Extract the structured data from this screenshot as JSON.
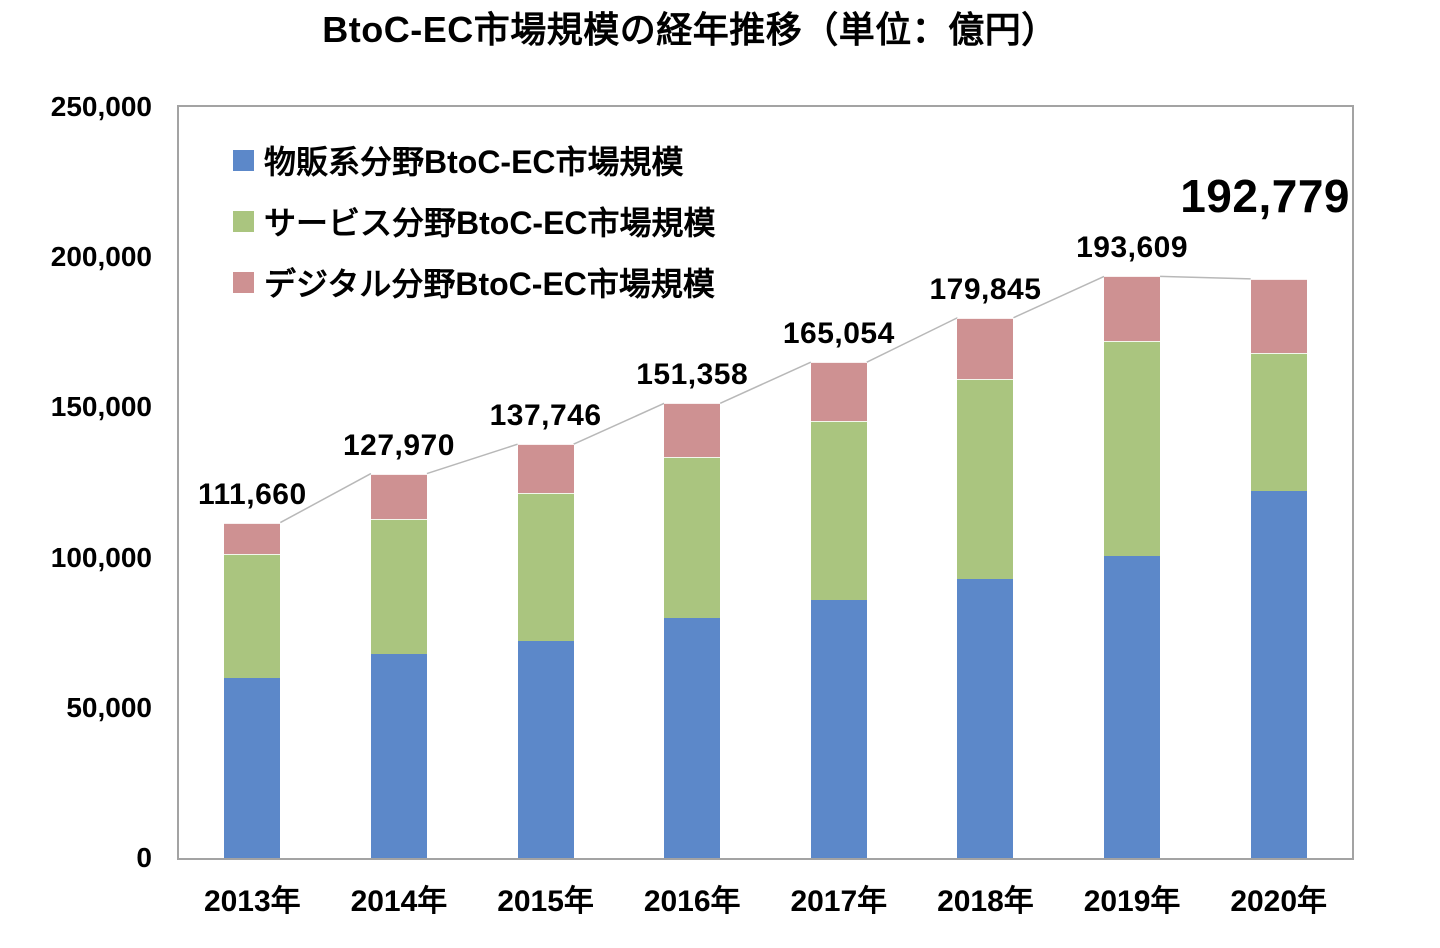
{
  "title": "BtoC-EC市場規模の経年推移（単位：億円）",
  "chart_data": {
    "type": "bar",
    "stacked": true,
    "unit": "億円",
    "title": "BtoC-EC市場規模の経年推移（単位：億円）",
    "categories": [
      "2013年",
      "2014年",
      "2015年",
      "2016年",
      "2017年",
      "2018年",
      "2019年",
      "2020年"
    ],
    "series": [
      {
        "name": "物販系分野BtoC-EC市場規模",
        "color": "#5c88c9",
        "values": [
          59931,
          68042,
          72398,
          80043,
          86008,
          92992,
          100515,
          122333
        ]
      },
      {
        "name": "サービス分野BtoC-EC市場規模",
        "color": "#aac57f",
        "values": [
          41310,
          44816,
          49014,
          53532,
          59568,
          66471,
          71672,
          45832
        ]
      },
      {
        "name": "デジタル分野BtoC-EC市場規模",
        "color": "#ce9192",
        "values": [
          10419,
          15111,
          16334,
          17782,
          19478,
          20382,
          21422,
          24614
        ]
      }
    ],
    "totals": [
      111660,
      127970,
      137746,
      151358,
      165054,
      179845,
      193609,
      192779
    ],
    "total_labels": [
      "111,660",
      "127,970",
      "137,746",
      "151,358",
      "165,054",
      "179,845",
      "193,609",
      "192,779"
    ],
    "highlighted_total_label": "192,779",
    "y_axis": {
      "min": 0,
      "max": 250000,
      "tick_values": [
        250000,
        200000,
        150000,
        100000,
        50000,
        0
      ],
      "tick_labels": [
        "250,000",
        "200,000",
        "150,000",
        "100,000",
        "50,000",
        "0"
      ]
    },
    "grid": false,
    "legend_position": "inside-top-left",
    "series_line_color": "#b8b8b8",
    "plot_border_color": "#a3a3a3"
  }
}
